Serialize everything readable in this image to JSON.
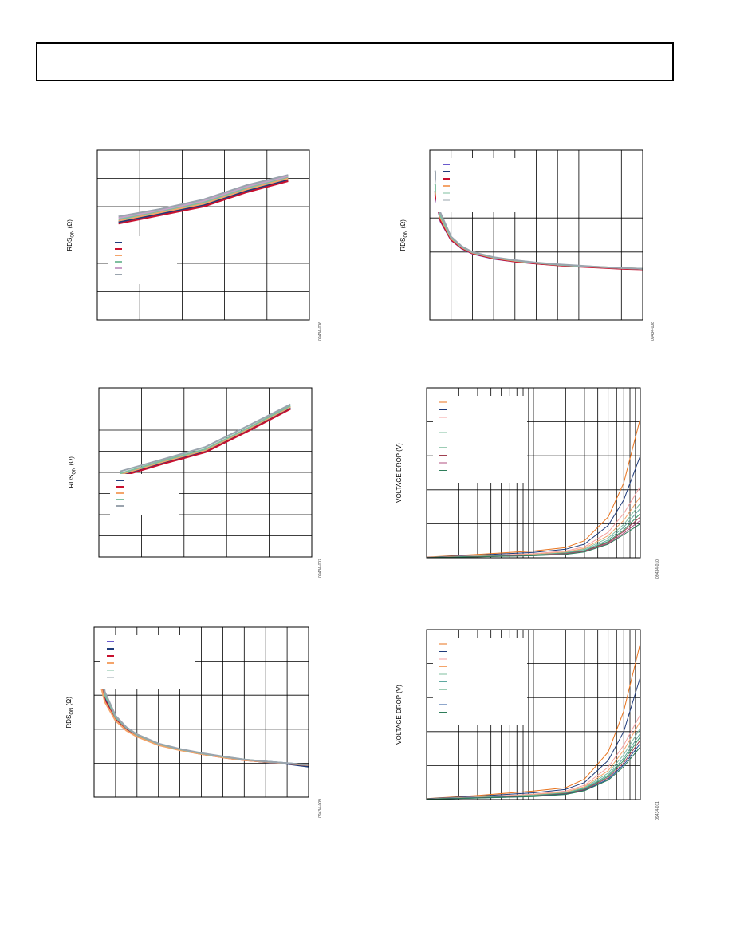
{
  "page": {
    "header_text": ""
  },
  "chart_data": [
    {
      "id": "c1",
      "type": "line",
      "figcode": "09434-006",
      "ylabel_main": "RDS",
      "ylabel_sub": "ON",
      "ylabel_unit": " (Ω)",
      "grid": true,
      "xscale": "linear",
      "xlim": [
        0,
        5
      ],
      "ylim": [
        0,
        6
      ],
      "legend_position": "center-left",
      "legend_style": "thick",
      "series": [
        {
          "color": "#1f3b7a",
          "x": [
            0.5,
            1.5,
            2.5,
            3.5,
            4.5
          ],
          "y": [
            3.45,
            3.75,
            4.05,
            4.55,
            4.95
          ]
        },
        {
          "color": "#c8102e",
          "x": [
            0.5,
            1.5,
            2.5,
            3.5,
            4.5
          ],
          "y": [
            3.4,
            3.7,
            4.0,
            4.5,
            4.9
          ]
        },
        {
          "color": "#f4a46a",
          "x": [
            0.5,
            1.5,
            2.5,
            3.5,
            4.5
          ],
          "y": [
            3.5,
            3.8,
            4.1,
            4.6,
            5.0
          ]
        },
        {
          "color": "#7fbf9f",
          "x": [
            0.5,
            1.5,
            2.5,
            3.5,
            4.5
          ],
          "y": [
            3.55,
            3.85,
            4.15,
            4.65,
            5.05
          ]
        },
        {
          "color": "#c8a0c8",
          "x": [
            0.5,
            1.5,
            2.5,
            3.5,
            4.5
          ],
          "y": [
            3.6,
            3.88,
            4.2,
            4.7,
            5.08
          ]
        },
        {
          "color": "#9aa4ae",
          "x": [
            0.5,
            1.5,
            2.5,
            3.5,
            4.5
          ],
          "y": [
            3.65,
            3.92,
            4.25,
            4.75,
            5.12
          ]
        }
      ]
    },
    {
      "id": "c2",
      "type": "line",
      "figcode": "09434-008",
      "ylabel_main": "RDS",
      "ylabel_sub": "ON",
      "ylabel_unit": " (Ω)",
      "grid": true,
      "xscale": "linear",
      "xlim": [
        0,
        10
      ],
      "ylim": [
        0,
        5
      ],
      "legend_position": "top-left",
      "legend_style": "mixed",
      "series": [
        {
          "color": "#6a5acd",
          "x": [
            0.25,
            0.5,
            1,
            1.5,
            2,
            3,
            4,
            5,
            6,
            7,
            8,
            9,
            10
          ],
          "y": [
            3.7,
            2.9,
            2.35,
            2.1,
            1.95,
            1.8,
            1.72,
            1.66,
            1.62,
            1.58,
            1.55,
            1.52,
            1.5
          ]
        },
        {
          "color": "#1f3b7a",
          "x": [
            0.25,
            0.5,
            1,
            1.5,
            2,
            3,
            4,
            5,
            6,
            7,
            8,
            9,
            10
          ],
          "y": [
            3.8,
            2.95,
            2.38,
            2.12,
            1.97,
            1.82,
            1.73,
            1.67,
            1.62,
            1.58,
            1.55,
            1.52,
            1.5
          ]
        },
        {
          "color": "#c8102e",
          "x": [
            0.25,
            0.5,
            1,
            1.5,
            2,
            3,
            4,
            5,
            6,
            7,
            8,
            9,
            10
          ],
          "y": [
            3.75,
            2.92,
            2.36,
            2.11,
            1.96,
            1.81,
            1.72,
            1.66,
            1.61,
            1.57,
            1.54,
            1.51,
            1.49
          ]
        },
        {
          "color": "#f4a46a",
          "x": [
            0.25,
            0.5,
            1,
            1.5,
            2,
            3,
            4,
            5,
            6,
            7,
            8,
            9,
            10
          ],
          "y": [
            3.9,
            3.0,
            2.4,
            2.14,
            1.98,
            1.83,
            1.74,
            1.68,
            1.63,
            1.59,
            1.56,
            1.53,
            1.51
          ]
        },
        {
          "color": "#7fbf9f",
          "x": [
            0.25,
            0.5,
            1,
            1.5,
            2,
            3,
            4,
            5,
            6,
            7,
            8,
            9,
            10
          ],
          "y": [
            4.0,
            3.05,
            2.42,
            2.15,
            1.99,
            1.84,
            1.75,
            1.68,
            1.63,
            1.59,
            1.56,
            1.53,
            1.51
          ]
        },
        {
          "color": "#9aa4ae",
          "x": [
            0.25,
            0.5,
            1,
            1.5,
            2,
            3,
            4,
            5,
            6,
            7,
            8,
            9,
            10
          ],
          "y": [
            4.4,
            3.15,
            2.45,
            2.17,
            2.0,
            1.85,
            1.76,
            1.69,
            1.64,
            1.6,
            1.56,
            1.53,
            1.51
          ]
        }
      ]
    },
    {
      "id": "c3",
      "type": "line",
      "figcode": "09434-007",
      "ylabel_main": "RDS",
      "ylabel_sub": "ON",
      "ylabel_unit": " (Ω)",
      "grid": true,
      "xscale": "linear",
      "xlim": [
        0,
        5
      ],
      "ylim": [
        0,
        8
      ],
      "legend_position": "center-left",
      "legend_style": "thick",
      "series": [
        {
          "color": "#1f3b7a",
          "x": [
            0.5,
            1.5,
            2.5,
            3.5,
            4.5
          ],
          "y": [
            3.85,
            4.45,
            5.0,
            6.0,
            7.05
          ]
        },
        {
          "color": "#c8102e",
          "x": [
            0.5,
            1.5,
            2.5,
            3.5,
            4.5
          ],
          "y": [
            3.8,
            4.4,
            4.95,
            5.95,
            7.0
          ]
        },
        {
          "color": "#f4a46a",
          "x": [
            0.5,
            1.5,
            2.5,
            3.5,
            4.5
          ],
          "y": [
            3.9,
            4.5,
            5.05,
            6.05,
            7.1
          ]
        },
        {
          "color": "#7fbf9f",
          "x": [
            0.5,
            1.5,
            2.5,
            3.5,
            4.5
          ],
          "y": [
            3.95,
            4.55,
            5.1,
            6.1,
            7.15
          ]
        },
        {
          "color": "#9aa4ae",
          "x": [
            0.5,
            1.5,
            2.5,
            3.5,
            4.5
          ],
          "y": [
            4.05,
            4.62,
            5.2,
            6.2,
            7.22
          ]
        }
      ]
    },
    {
      "id": "c4",
      "type": "line",
      "figcode": "09434-010",
      "ylabel": "VOLTAGE DROP (V)",
      "grid": true,
      "xscale": "log",
      "xlim": [
        0.1,
        10
      ],
      "ylim": [
        0,
        5
      ],
      "legend_position": "top-left",
      "legend_style": "thin",
      "series": [
        {
          "color": "#e8731c",
          "x": [
            0.1,
            0.3,
            1,
            2,
            3,
            5,
            7,
            10
          ],
          "y": [
            0.02,
            0.1,
            0.2,
            0.3,
            0.5,
            1.2,
            2.2,
            4.1
          ]
        },
        {
          "color": "#1f3b7a",
          "x": [
            0.1,
            0.3,
            1,
            2,
            3,
            5,
            7,
            10
          ],
          "y": [
            0.015,
            0.08,
            0.16,
            0.25,
            0.4,
            0.95,
            1.7,
            3.0
          ]
        },
        {
          "color": "#f4a0a0",
          "x": [
            0.1,
            0.3,
            1,
            2,
            3,
            5,
            7,
            10
          ],
          "y": [
            0.012,
            0.06,
            0.12,
            0.2,
            0.32,
            0.75,
            1.3,
            2.1
          ]
        },
        {
          "color": "#f4a46a",
          "x": [
            0.1,
            0.3,
            1,
            2,
            3,
            5,
            7,
            10
          ],
          "y": [
            0.011,
            0.05,
            0.1,
            0.17,
            0.28,
            0.65,
            1.1,
            1.8
          ]
        },
        {
          "color": "#7fbf9f",
          "x": [
            0.1,
            0.3,
            1,
            2,
            3,
            5,
            7,
            10
          ],
          "y": [
            0.01,
            0.045,
            0.09,
            0.15,
            0.25,
            0.58,
            0.98,
            1.6
          ]
        },
        {
          "color": "#5fa8a0",
          "x": [
            0.1,
            0.3,
            1,
            2,
            3,
            5,
            7,
            10
          ],
          "y": [
            0.009,
            0.04,
            0.08,
            0.14,
            0.22,
            0.52,
            0.9,
            1.45
          ]
        },
        {
          "color": "#3a9a6a",
          "x": [
            0.1,
            0.3,
            1,
            2,
            3,
            5,
            7,
            10
          ],
          "y": [
            0.008,
            0.035,
            0.075,
            0.13,
            0.2,
            0.48,
            0.82,
            1.3
          ]
        },
        {
          "color": "#a04050",
          "x": [
            0.1,
            0.3,
            1,
            2,
            3,
            5,
            7,
            10
          ],
          "y": [
            0.008,
            0.032,
            0.07,
            0.12,
            0.19,
            0.45,
            0.78,
            1.2
          ]
        },
        {
          "color": "#b05080",
          "x": [
            0.1,
            0.3,
            1,
            2,
            3,
            5,
            7,
            10
          ],
          "y": [
            0.007,
            0.03,
            0.065,
            0.11,
            0.18,
            0.42,
            0.72,
            1.1
          ]
        },
        {
          "color": "#2e7d5a",
          "x": [
            0.1,
            0.3,
            1,
            2,
            3,
            5,
            7,
            10
          ],
          "y": [
            0.007,
            0.028,
            0.06,
            0.1,
            0.17,
            0.4,
            0.68,
            1.0
          ]
        }
      ]
    },
    {
      "id": "c5",
      "type": "line",
      "figcode": "09434-009",
      "ylabel_main": "RDS",
      "ylabel_sub": "ON",
      "ylabel_unit": " (Ω)",
      "grid": true,
      "xscale": "linear",
      "xlim": [
        0,
        10
      ],
      "ylim": [
        0,
        5
      ],
      "legend_position": "top-left",
      "legend_style": "mixed",
      "series": [
        {
          "color": "#6a5acd",
          "x": [
            0.3,
            0.5,
            1,
            1.5,
            2,
            3,
            4,
            5,
            6,
            7,
            8,
            9,
            10
          ],
          "y": [
            3.5,
            2.9,
            2.3,
            2.0,
            1.8,
            1.55,
            1.4,
            1.28,
            1.18,
            1.1,
            1.05,
            1.0,
            0.95
          ]
        },
        {
          "color": "#1f3b7a",
          "x": [
            0.3,
            0.5,
            1,
            1.5,
            2,
            3,
            4,
            5,
            6,
            7,
            8,
            9,
            10
          ],
          "y": [
            3.6,
            2.95,
            2.32,
            2.02,
            1.82,
            1.56,
            1.41,
            1.28,
            1.18,
            1.1,
            1.03,
            0.98,
            0.9
          ]
        },
        {
          "color": "#c8102e",
          "x": [
            0.3,
            0.5,
            1,
            1.5,
            2,
            3,
            4,
            5,
            6,
            7,
            8,
            9,
            10
          ],
          "y": [
            3.4,
            2.85,
            2.28,
            1.98,
            1.79,
            1.54,
            1.39,
            1.27,
            1.17,
            1.09,
            1.04,
            0.99,
            0.94
          ]
        },
        {
          "color": "#f4a46a",
          "x": [
            0.3,
            0.5,
            1,
            1.5,
            2,
            3,
            4,
            5,
            6,
            7,
            8,
            9,
            10
          ],
          "y": [
            3.3,
            2.8,
            2.25,
            1.96,
            1.78,
            1.53,
            1.38,
            1.27,
            1.17,
            1.09,
            1.04,
            0.99,
            0.94
          ]
        },
        {
          "color": "#7fbf9f",
          "x": [
            0.3,
            0.5,
            1,
            1.5,
            2,
            3,
            4,
            5,
            6,
            7,
            8,
            9,
            10
          ],
          "y": [
            3.7,
            3.0,
            2.35,
            2.04,
            1.83,
            1.57,
            1.41,
            1.29,
            1.19,
            1.11,
            1.05,
            1.0,
            0.95
          ]
        },
        {
          "color": "#9aa4ae",
          "x": [
            0.3,
            0.5,
            1,
            1.5,
            2,
            3,
            4,
            5,
            6,
            7,
            8,
            9,
            10
          ],
          "y": [
            4.0,
            3.1,
            2.4,
            2.06,
            1.85,
            1.58,
            1.42,
            1.3,
            1.2,
            1.11,
            1.05,
            1.0,
            0.95
          ]
        }
      ]
    },
    {
      "id": "c6",
      "type": "line",
      "figcode": "09434-011",
      "ylabel": "VOLTAGE DROP (V)",
      "grid": true,
      "xscale": "log",
      "xlim": [
        0.1,
        10
      ],
      "ylim": [
        0,
        5
      ],
      "legend_position": "top-left",
      "legend_style": "thin",
      "series": [
        {
          "color": "#e8731c",
          "x": [
            0.1,
            0.3,
            1,
            2,
            3,
            5,
            7,
            10
          ],
          "y": [
            0.03,
            0.12,
            0.25,
            0.35,
            0.6,
            1.4,
            2.6,
            4.6
          ]
        },
        {
          "color": "#1f3b7a",
          "x": [
            0.1,
            0.3,
            1,
            2,
            3,
            5,
            7,
            10
          ],
          "y": [
            0.025,
            0.1,
            0.2,
            0.3,
            0.5,
            1.15,
            2.0,
            3.6
          ]
        },
        {
          "color": "#f4a0a0",
          "x": [
            0.1,
            0.3,
            1,
            2,
            3,
            5,
            7,
            10
          ],
          "y": [
            0.02,
            0.08,
            0.16,
            0.25,
            0.42,
            0.95,
            1.6,
            2.5
          ]
        },
        {
          "color": "#f4a46a",
          "x": [
            0.1,
            0.3,
            1,
            2,
            3,
            5,
            7,
            10
          ],
          "y": [
            0.018,
            0.07,
            0.14,
            0.22,
            0.38,
            0.85,
            1.45,
            2.3
          ]
        },
        {
          "color": "#7fbf9f",
          "x": [
            0.1,
            0.3,
            1,
            2,
            3,
            5,
            7,
            10
          ],
          "y": [
            0.016,
            0.065,
            0.13,
            0.2,
            0.35,
            0.78,
            1.32,
            2.1
          ]
        },
        {
          "color": "#5fa8a0",
          "x": [
            0.1,
            0.3,
            1,
            2,
            3,
            5,
            7,
            10
          ],
          "y": [
            0.015,
            0.06,
            0.12,
            0.19,
            0.33,
            0.72,
            1.22,
            1.95
          ]
        },
        {
          "color": "#3a9a6a",
          "x": [
            0.1,
            0.3,
            1,
            2,
            3,
            5,
            7,
            10
          ],
          "y": [
            0.014,
            0.055,
            0.11,
            0.18,
            0.31,
            0.68,
            1.15,
            1.85
          ]
        },
        {
          "color": "#a04050",
          "x": [
            0.1,
            0.3,
            1,
            2,
            3,
            5,
            7,
            10
          ],
          "y": [
            0.013,
            0.05,
            0.1,
            0.17,
            0.29,
            0.64,
            1.08,
            1.75
          ]
        },
        {
          "color": "#1f4f9a",
          "x": [
            0.1,
            0.3,
            1,
            2,
            3,
            5,
            7,
            10
          ],
          "y": [
            0.012,
            0.048,
            0.095,
            0.16,
            0.27,
            0.6,
            1.02,
            1.65
          ]
        },
        {
          "color": "#2e7d5a",
          "x": [
            0.1,
            0.3,
            1,
            2,
            3,
            5,
            7,
            10
          ],
          "y": [
            0.011,
            0.045,
            0.09,
            0.15,
            0.26,
            0.57,
            0.97,
            1.55
          ]
        }
      ]
    }
  ]
}
